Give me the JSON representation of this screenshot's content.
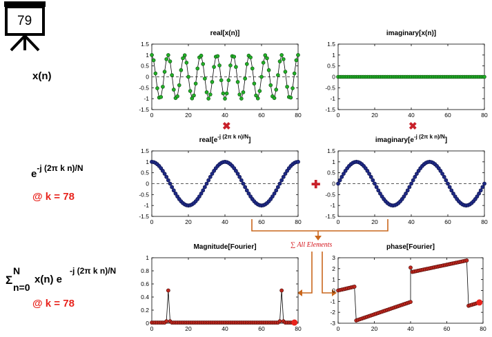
{
  "slide_number": "79",
  "row_labels": {
    "signal": "x(n)",
    "kernel_base": "e",
    "kernel_exponent": "-j (2π k n)/N",
    "kernel_k": "@ k = 78",
    "sum_sigma": "Σ",
    "sum_upper": "N",
    "sum_lower": "n=0",
    "sum_body": "x(n) e",
    "sum_exponent": "-j (2π k n)/N",
    "sum_k": "@ k = 78"
  },
  "operators": {
    "multiply": "✖",
    "add": "✚",
    "sum_note": "∑ All Elements"
  },
  "colors": {
    "signal_marker": "#22b026",
    "kernel_marker": "#1f2a86",
    "fourier_marker": "#c0281e",
    "arrow": "#c9661c",
    "accent_red": "#e8231c"
  },
  "chart_data": [
    {
      "id": "real_x",
      "type": "line",
      "title": "real[x(n)]",
      "xlim": [
        0,
        80
      ],
      "ylim": [
        -1.5,
        1.5
      ],
      "xticks": [
        0,
        20,
        40,
        60,
        80
      ],
      "yticks": [
        1.5,
        1,
        0.5,
        0,
        -0.5,
        -1,
        -1.5
      ],
      "ytick_labels": [
        "1.5",
        "1",
        "0.5",
        "0",
        "-0.5",
        "-1",
        "-1.5"
      ],
      "x_range": [
        0,
        80
      ],
      "y_formula": "cos(2π·9n/80)",
      "marker": "green",
      "zero_line": true
    },
    {
      "id": "imag_x",
      "type": "line",
      "title": "imaginary[x(n)]",
      "xlim": [
        0,
        80
      ],
      "ylim": [
        -1.5,
        1.5
      ],
      "xticks": [
        0,
        20,
        40,
        60,
        80
      ],
      "yticks": [
        1.5,
        1,
        0.5,
        0,
        -0.5,
        -1,
        -1.5
      ],
      "ytick_labels": [
        "1.5",
        "1",
        "0.5",
        "0",
        "-0.5",
        "-1",
        "-1.5"
      ],
      "x_range": [
        0,
        80
      ],
      "y_formula": "0",
      "marker": "green",
      "zero_line": true
    },
    {
      "id": "real_kernel",
      "type": "line",
      "title_prefix": "real[e",
      "title_sup": "-j (2π k n)/N",
      "title_suffix": "]",
      "xlim": [
        0,
        80
      ],
      "ylim": [
        -1.5,
        1.5
      ],
      "xticks": [
        0,
        20,
        40,
        60,
        80
      ],
      "yticks": [
        1.5,
        1,
        0.5,
        0,
        -0.5,
        -1,
        -1.5
      ],
      "ytick_labels": [
        "1.5",
        "1",
        "0.5",
        "0",
        "-0.5",
        "-1",
        "-1.5"
      ],
      "x_range": [
        0,
        80
      ],
      "y_formula": "cos(2π·78n/80)",
      "marker": "navy",
      "zero_line": true
    },
    {
      "id": "imag_kernel",
      "type": "line",
      "title_prefix": "imaginary[e",
      "title_sup": "-j (2π k n)/N",
      "title_suffix": "]",
      "xlim": [
        0,
        80
      ],
      "ylim": [
        -1.5,
        1.5
      ],
      "xticks": [
        0,
        20,
        40,
        60,
        80
      ],
      "yticks": [
        1.5,
        1,
        0.5,
        0,
        -0.5,
        -1,
        -1.5
      ],
      "ytick_labels": [
        "1.5",
        "1",
        "0.5",
        "0",
        "-0.5",
        "-1",
        "-1.5"
      ],
      "x_range": [
        0,
        80
      ],
      "y_formula": "-sin(2π·78n/80)",
      "marker": "navy",
      "zero_line": true
    },
    {
      "id": "magnitude",
      "type": "line",
      "title": "Magnitude[Fourier]",
      "xlim": [
        0,
        80
      ],
      "ylim": [
        0,
        1
      ],
      "xticks": [
        0,
        20,
        40,
        60,
        80
      ],
      "yticks": [
        1,
        0.8,
        0.6,
        0.4,
        0.2,
        0
      ],
      "ytick_labels": [
        "1",
        "0.8",
        "0.6",
        "0.4",
        "0.2",
        "0"
      ],
      "x_range": [
        0,
        78
      ],
      "spikes": [
        {
          "x": 9,
          "y": 0.5
        },
        {
          "x": 71,
          "y": 0.5
        }
      ],
      "highlight": {
        "x": 78,
        "y": 0.01
      },
      "marker": "red",
      "zero_line": false
    },
    {
      "id": "phase",
      "type": "line",
      "title": "phase[Fourier]",
      "xlim": [
        0,
        80
      ],
      "ylim": [
        -3,
        3
      ],
      "xticks": [
        0,
        20,
        40,
        60,
        80
      ],
      "yticks": [
        3,
        2,
        1,
        0,
        -1,
        -2,
        -3
      ],
      "ytick_labels": [
        "3",
        "2",
        "1",
        "0",
        "-1",
        "-2",
        "-3"
      ],
      "x_range": [
        0,
        78
      ],
      "segments": [
        {
          "from": [
            0,
            0.0
          ],
          "to": [
            9,
            0.35
          ]
        },
        {
          "from": [
            10,
            -2.75
          ],
          "to": [
            40,
            -1.05
          ]
        },
        {
          "from": [
            40,
            2.1
          ],
          "to": [
            40,
            2.1
          ]
        },
        {
          "from": [
            41,
            1.7
          ],
          "to": [
            71,
            2.75
          ]
        },
        {
          "from": [
            72,
            -1.4
          ],
          "to": [
            78,
            -1.1
          ]
        }
      ],
      "highlight": {
        "x": 78,
        "y": -1.1
      },
      "marker": "red",
      "zero_line": false
    }
  ]
}
